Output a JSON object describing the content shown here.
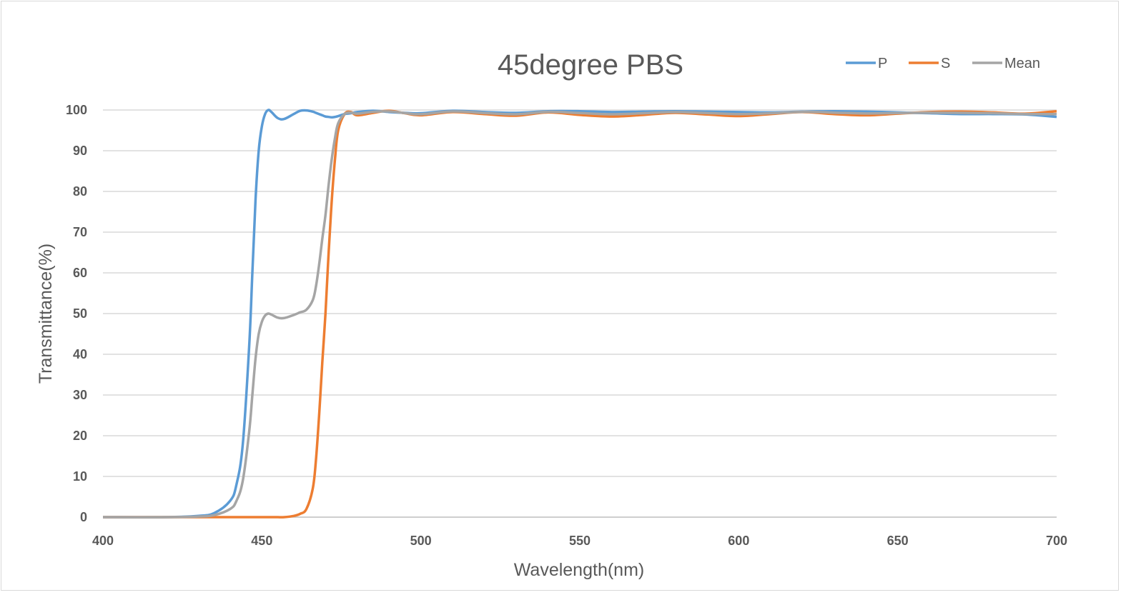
{
  "chart_data": {
    "type": "line",
    "title": "45degree PBS",
    "xlabel": "Wavelength(nm)",
    "ylabel": "Transmittance(%)",
    "xlim": [
      400,
      700
    ],
    "ylim": [
      0,
      100
    ],
    "xticks": [
      "400",
      "450",
      "500",
      "550",
      "600",
      "650",
      "700"
    ],
    "yticks": [
      "0",
      "10",
      "20",
      "30",
      "40",
      "50",
      "60",
      "70",
      "80",
      "90",
      "100"
    ],
    "grid": "horizontal",
    "legend_position": "top-right",
    "x": [
      400,
      420,
      430,
      435,
      440,
      442,
      444,
      446,
      447,
      448,
      449,
      450,
      451,
      452,
      453,
      455,
      457,
      460,
      462,
      464,
      466,
      467,
      468,
      469,
      470,
      471,
      472,
      473,
      474,
      476,
      478,
      480,
      485,
      490,
      495,
      500,
      510,
      520,
      530,
      540,
      550,
      560,
      570,
      580,
      590,
      600,
      610,
      620,
      630,
      640,
      650,
      660,
      670,
      680,
      690,
      700
    ],
    "series": [
      {
        "name": "P",
        "color": "#5b9bd5",
        "values": [
          0,
          0,
          0.3,
          1,
          4,
          8,
          18,
          42,
          60,
          78,
          90,
          96,
          99,
          100,
          99.5,
          98,
          97.8,
          99,
          99.8,
          99.9,
          99.6,
          99.3,
          99,
          98.7,
          98.4,
          98.3,
          98.2,
          98.3,
          98.5,
          99,
          99.2,
          99.5,
          99.8,
          99.5,
          99.3,
          99.2,
          99.8,
          99.5,
          99.3,
          99.7,
          99.7,
          99.5,
          99.6,
          99.7,
          99.6,
          99.5,
          99.4,
          99.6,
          99.7,
          99.6,
          99.4,
          99.2,
          99,
          99,
          98.9,
          98.3
        ]
      },
      {
        "name": "S",
        "color": "#ed7d31",
        "values": [
          0,
          0,
          0,
          0,
          0,
          0,
          0,
          0,
          0,
          0,
          0,
          0,
          0,
          0,
          0,
          0,
          0,
          0.3,
          0.8,
          2,
          7,
          14,
          25,
          38,
          50,
          65,
          78,
          88,
          95,
          99,
          99.5,
          98.7,
          99.3,
          99.8,
          99.2,
          98.7,
          99.5,
          99,
          98.6,
          99.4,
          98.8,
          98.4,
          98.8,
          99.3,
          98.9,
          98.5,
          99,
          99.5,
          99,
          98.7,
          99.1,
          99.5,
          99.6,
          99.4,
          99.1,
          99.7
        ]
      },
      {
        "name": "Mean",
        "color": "#a5a5a5",
        "values": [
          0,
          0,
          0.15,
          0.5,
          2,
          4,
          9,
          21,
          30,
          39,
          45,
          48,
          49.5,
          50,
          49.75,
          49,
          48.9,
          49.65,
          50.3,
          50.95,
          53.3,
          56.65,
          62,
          68.35,
          74.2,
          81.65,
          88.1,
          93.15,
          96.75,
          99,
          99.35,
          99.1,
          99.55,
          99.65,
          99.25,
          98.95,
          99.65,
          99.25,
          98.95,
          99.55,
          99.25,
          98.95,
          99.2,
          99.5,
          99.25,
          99,
          99.2,
          99.55,
          99.35,
          99.15,
          99.25,
          99.35,
          99.3,
          99.2,
          99,
          99
        ]
      }
    ]
  }
}
